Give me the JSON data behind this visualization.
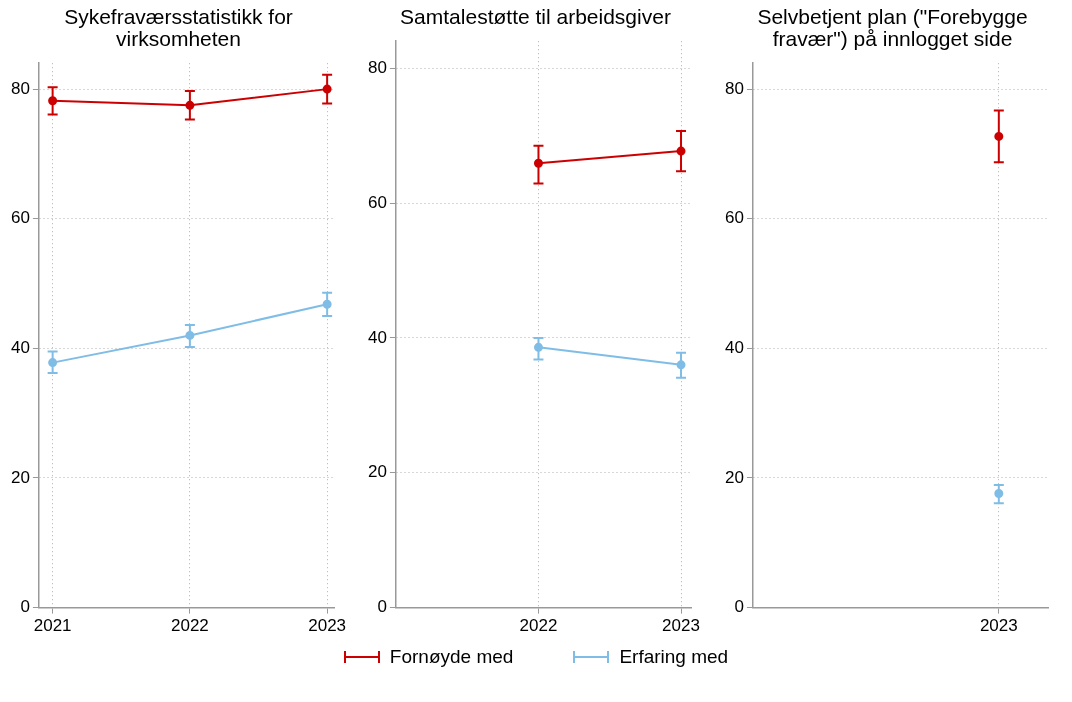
{
  "chart_data": [
    {
      "type": "line",
      "title": "Sykefraværsstatistikk for virksomheten",
      "x": [
        2021,
        2022,
        2023
      ],
      "xlim": [
        2020.9,
        2023.05
      ],
      "xticks": [
        2021,
        2022,
        2023
      ],
      "ylim": [
        0,
        84
      ],
      "yticks": [
        0,
        20,
        40,
        60,
        80
      ],
      "grid": true,
      "marker": "circle",
      "legend": "bottom",
      "series": [
        {
          "name": "Fornøyde med",
          "color": "#cc0000",
          "values": [
            78.2,
            77.5,
            80.0
          ],
          "errors": [
            [
              76.1,
              80.3
            ],
            [
              75.3,
              79.7
            ],
            [
              77.8,
              82.2
            ]
          ]
        },
        {
          "name": "Erfaring med",
          "color": "#7fbde6",
          "values": [
            37.8,
            42.0,
            46.8
          ],
          "errors": [
            [
              36.2,
              39.5
            ],
            [
              40.2,
              43.6
            ],
            [
              45.0,
              48.6
            ]
          ]
        }
      ]
    },
    {
      "type": "line",
      "title": "Samtalestøtte til arbeidsgiver",
      "x": [
        2022,
        2023
      ],
      "xlim": [
        2021,
        2023.07
      ],
      "xticks": [
        2022,
        2023
      ],
      "ylim": [
        0,
        84
      ],
      "yticks": [
        0,
        20,
        40,
        60,
        80
      ],
      "grid": true,
      "marker": "circle",
      "series": [
        {
          "color": "#cc0000",
          "values": [
            65.9,
            67.7
          ],
          "errors": [
            [
              62.9,
              68.5
            ],
            [
              64.7,
              70.7
            ]
          ]
        },
        {
          "color": "#7fbde6",
          "values": [
            38.6,
            36.0
          ],
          "errors": [
            [
              36.8,
              40.0
            ],
            [
              34.1,
              37.8
            ]
          ]
        }
      ]
    },
    {
      "type": "line",
      "title": "Selvbetjent plan (\"Forebygge fravær\") på innlogget side",
      "categories": [
        null,
        null,
        "2023"
      ],
      "ylim": [
        0,
        84
      ],
      "yticks": [
        0,
        20,
        40,
        60,
        80
      ],
      "grid": true,
      "marker": "circle",
      "series": [
        {
          "color": "#cc0000",
          "values": [
            null,
            null,
            72.7
          ],
          "errors": [
            null,
            null,
            [
              68.7,
              76.7
            ]
          ]
        },
        {
          "color": "#7fbde6",
          "values": [
            null,
            null,
            17.6
          ],
          "errors": [
            null,
            null,
            [
              16.1,
              18.9
            ]
          ]
        }
      ]
    }
  ]
}
